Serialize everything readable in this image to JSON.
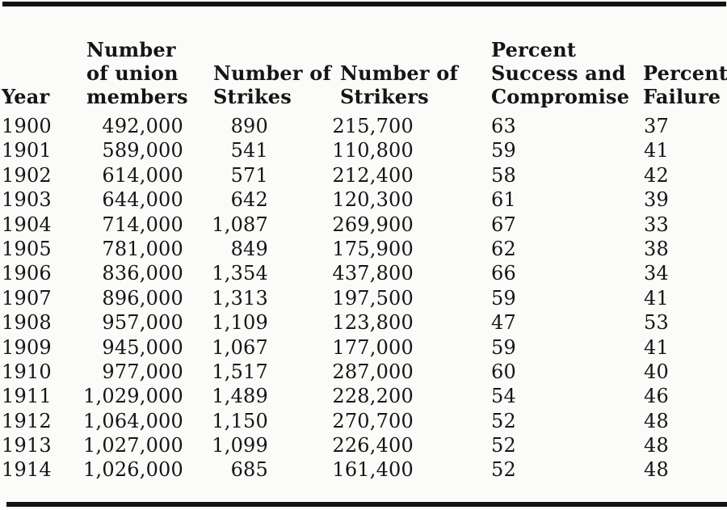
{
  "colors": {
    "text": "#151515",
    "background": "#fbfbf9",
    "rule": "#131313"
  },
  "table": {
    "columns": [
      {
        "label": "Year",
        "lines": [
          "Year"
        ]
      },
      {
        "label": "Number of union members",
        "lines": [
          "Number",
          "of union",
          "members"
        ]
      },
      {
        "label": "Number of Strikes",
        "lines": [
          "Number of",
          "Strikes"
        ]
      },
      {
        "label": "Number of Strikers",
        "lines": [
          "Number of",
          "Strikers"
        ]
      },
      {
        "label": "Percent Success and Compromise",
        "lines": [
          "Percent",
          "Success and",
          "Compromise"
        ]
      },
      {
        "label": "Percent Failure",
        "lines": [
          "Percent",
          "Failure"
        ]
      }
    ],
    "rows": [
      [
        "1900",
        "492,000",
        "890",
        "215,700",
        "63",
        "37"
      ],
      [
        "1901",
        "589,000",
        "541",
        "110,800",
        "59",
        "41"
      ],
      [
        "1902",
        "614,000",
        "571",
        "212,400",
        "58",
        "42"
      ],
      [
        "1903",
        "644,000",
        "642",
        "120,300",
        "61",
        "39"
      ],
      [
        "1904",
        "714,000",
        "1,087",
        "269,900",
        "67",
        "33"
      ],
      [
        "1905",
        "781,000",
        "849",
        "175,900",
        "62",
        "38"
      ],
      [
        "1906",
        "836,000",
        "1,354",
        "437,800",
        "66",
        "34"
      ],
      [
        "1907",
        "896,000",
        "1,313",
        "197,500",
        "59",
        "41"
      ],
      [
        "1908",
        "957,000",
        "1,109",
        "123,800",
        "47",
        "53"
      ],
      [
        "1909",
        "945,000",
        "1,067",
        "177,000",
        "59",
        "41"
      ],
      [
        "1910",
        "977,000",
        "1,517",
        "287,000",
        "60",
        "40"
      ],
      [
        "1911",
        "1,029,000",
        "1,489",
        "228,200",
        "54",
        "46"
      ],
      [
        "1912",
        "1,064,000",
        "1,150",
        "270,700",
        "52",
        "48"
      ],
      [
        "1913",
        "1,027,000",
        "1,099",
        "226,400",
        "52",
        "48"
      ],
      [
        "1914",
        "1,026,000",
        "685",
        "161,400",
        "52",
        "48"
      ]
    ]
  }
}
